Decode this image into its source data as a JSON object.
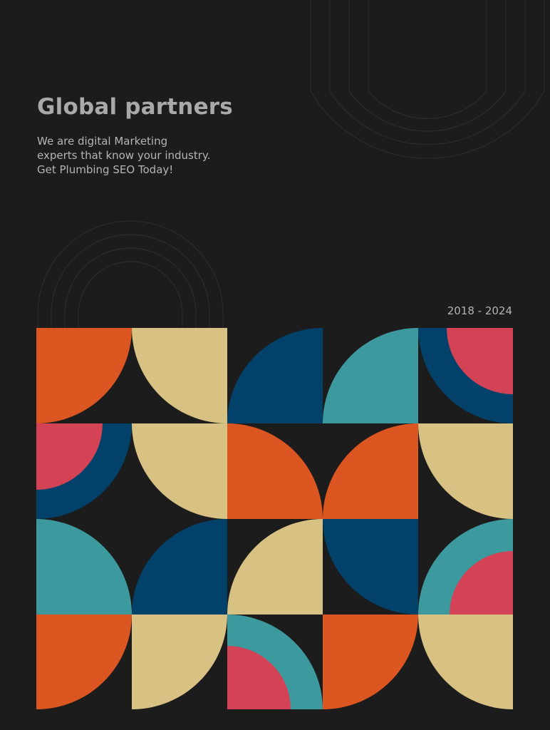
{
  "heading": {
    "title": "Global partners",
    "subtitle_lines": [
      "We are digital Marketing",
      "experts that know your industry.",
      "Get Plumbing SEO Today!"
    ]
  },
  "date_range": "2018 - 2024",
  "colors": {
    "background": "#1c1c1c",
    "orange": "#db5620",
    "cream": "#d8c283",
    "navy": "#02426a",
    "teal": "#3c999d",
    "pink": "#d44255",
    "line": "#2c2c2c"
  }
}
